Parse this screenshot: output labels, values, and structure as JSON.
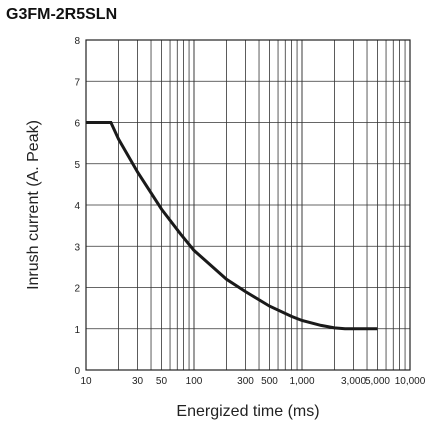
{
  "chart_data": {
    "type": "line",
    "title": "G3FM-2R5SLN",
    "xlabel": "Energized time (ms)",
    "ylabel": "Inrush current (A. Peak)",
    "xscale": "log",
    "xlim": [
      10,
      10000
    ],
    "ylim": [
      0,
      8
    ],
    "grid": true,
    "x_tick_labels": [
      "10",
      "30",
      "50",
      "100",
      "300",
      "500",
      "1,000",
      "3,000",
      "5,000",
      "10,000"
    ],
    "x_tick_values": [
      10,
      30,
      50,
      100,
      300,
      500,
      1000,
      3000,
      5000,
      10000
    ],
    "y_tick_labels": [
      "0",
      "1",
      "2",
      "3",
      "4",
      "5",
      "6",
      "7",
      "8"
    ],
    "series": [
      {
        "points": [
          [
            10,
            6
          ],
          [
            17,
            6
          ],
          [
            20,
            5.6
          ],
          [
            30,
            4.8
          ],
          [
            50,
            3.9
          ],
          [
            75,
            3.3
          ],
          [
            100,
            2.9
          ],
          [
            200,
            2.2
          ],
          [
            300,
            1.9
          ],
          [
            500,
            1.55
          ],
          [
            800,
            1.3
          ],
          [
            1000,
            1.2
          ],
          [
            1500,
            1.08
          ],
          [
            2000,
            1.02
          ],
          [
            2500,
            1.0
          ],
          [
            5000,
            1.0
          ]
        ]
      }
    ]
  }
}
